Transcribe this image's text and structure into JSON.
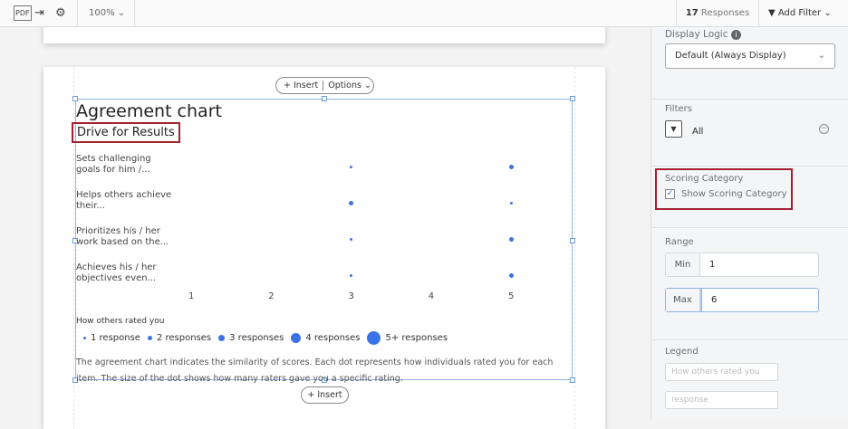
{
  "toolbar": {
    "icons": [
      "pdf-icon",
      "export-icon",
      "gear-icon"
    ],
    "zoom": "100%",
    "responses_count": "17",
    "responses_label": "Responses",
    "add_filter": "Add Filter"
  },
  "widget": {
    "insert": "Insert",
    "options": "Options",
    "title": "Agreement chart",
    "subtitle": "Drive for Results",
    "legend_title": "How others rated you",
    "legend": [
      "1 response",
      "2 responses",
      "3 responses",
      "4 responses",
      "5+ responses"
    ],
    "description": "The agreement chart indicates the similarity of scores. Each dot represents how individuals rated you for each item. The size of the dot shows how many raters gave you a specific rating.",
    "insert_below": "Insert",
    "accent": "#3a73e8",
    "highlight": "#a3212e"
  },
  "chart_data": {
    "type": "scatter",
    "x_ticks": [
      "1",
      "2",
      "3",
      "4",
      "5"
    ],
    "rows": [
      {
        "label": "Sets challenging goals for him /...",
        "points": [
          {
            "x": 3,
            "responses": 1
          },
          {
            "x": 5,
            "responses": 2
          }
        ]
      },
      {
        "label": "Helps others achieve their...",
        "points": [
          {
            "x": 3,
            "responses": 2
          },
          {
            "x": 5,
            "responses": 1
          }
        ]
      },
      {
        "label": "Prioritizes his / her work based on the...",
        "points": [
          {
            "x": 3,
            "responses": 1
          },
          {
            "x": 5,
            "responses": 2
          }
        ]
      },
      {
        "label": "Achieves his / her objectives even...",
        "points": [
          {
            "x": 3,
            "responses": 1
          },
          {
            "x": 5,
            "responses": 2
          }
        ]
      }
    ]
  },
  "panel": {
    "display_logic_label": "Display Logic",
    "display_logic_value": "Default (Always Display)",
    "filters_label": "Filters",
    "filters_value": "All",
    "scoring_label": "Scoring Category",
    "scoring_checkbox": "Show Scoring Category",
    "scoring_checked": true,
    "range_label": "Range",
    "min_label": "Min",
    "min_value": "1",
    "max_label": "Max",
    "max_value": "6",
    "legend_label": "Legend",
    "legend_title_placeholder": "How others rated you",
    "legend_unit_placeholder": "response"
  }
}
